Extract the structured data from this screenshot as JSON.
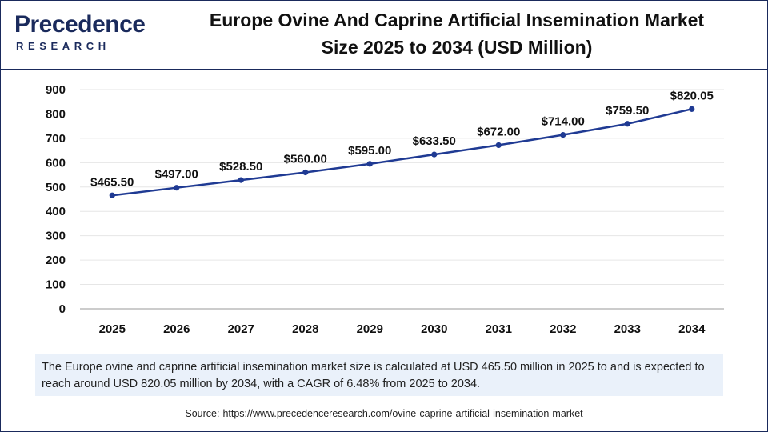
{
  "logo": {
    "name_top": "Precedence",
    "name_bottom": "RESEARCH"
  },
  "header": {
    "title_line1": "Europe Ovine And Caprine Artificial Insemination Market",
    "title_line2": "Size 2025 to 2034 (USD Million)"
  },
  "chart_data": {
    "type": "line",
    "title": "Europe Ovine And Caprine Artificial Insemination Market Size 2025 to 2034 (USD Million)",
    "xlabel": "",
    "ylabel": "",
    "categories": [
      "2025",
      "2026",
      "2027",
      "2028",
      "2029",
      "2030",
      "2031",
      "2032",
      "2033",
      "2034"
    ],
    "values": [
      465.5,
      497.0,
      528.5,
      560.0,
      595.0,
      633.5,
      672.0,
      714.0,
      759.5,
      820.05
    ],
    "data_labels": [
      "$465.50",
      "$497.00",
      "$528.50",
      "$560.00",
      "$595.00",
      "$633.50",
      "$672.00",
      "$714.00",
      "$759.50",
      "$820.05"
    ],
    "ylim": [
      0,
      900
    ],
    "yticks": [
      0,
      100,
      200,
      300,
      400,
      500,
      600,
      700,
      800,
      900
    ],
    "grid": true,
    "legend": "none",
    "line_color": "#1f3a93"
  },
  "summary": {
    "text": "The Europe ovine and caprine artificial insemination market size is calculated at USD 465.50 million in 2025 to and is expected to reach around USD 820.05 million by 2034, with a CAGR of 6.48% from 2025 to 2034."
  },
  "source": {
    "label": "Source:",
    "url": "https://www.precedenceresearch.com/ovine-caprine-artificial-insemination-market"
  }
}
